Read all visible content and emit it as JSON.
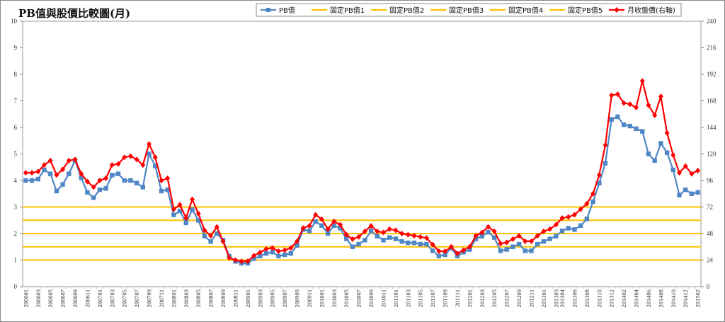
{
  "chart_data": {
    "type": "line",
    "title": "PB值與股價比較圖(月)",
    "y_left": {
      "min": 0,
      "max": 10,
      "ticks": [
        0,
        1,
        2,
        3,
        4,
        5,
        6,
        7,
        8,
        9,
        10
      ]
    },
    "y_right": {
      "min": 0,
      "max": 240,
      "ticks": [
        0,
        24,
        48,
        72,
        96,
        120,
        144,
        168,
        192,
        216,
        240
      ]
    },
    "legend_position": "top-right",
    "grid": false,
    "x": [
      "200601",
      "200602",
      "200603",
      "200604",
      "200605",
      "200606",
      "200607",
      "200608",
      "200609",
      "200610",
      "200611",
      "200612",
      "200701",
      "200702",
      "200703",
      "200704",
      "200705",
      "200706",
      "200707",
      "200708",
      "200709",
      "200710",
      "200711",
      "200712",
      "200801",
      "200802",
      "200803",
      "200804",
      "200805",
      "200806",
      "200807",
      "200808",
      "200809",
      "200810",
      "200811",
      "200812",
      "200901",
      "200902",
      "200903",
      "200904",
      "200905",
      "200906",
      "200907",
      "200908",
      "200909",
      "200910",
      "200911",
      "200912",
      "201001",
      "201002",
      "201003",
      "201004",
      "201005",
      "201006",
      "201007",
      "201008",
      "201009",
      "201010",
      "201011",
      "201012",
      "201101",
      "201102",
      "201103",
      "201104",
      "201105",
      "201106",
      "201107",
      "201108",
      "201109",
      "201110",
      "201111",
      "201112",
      "201201",
      "201202",
      "201203",
      "201204",
      "201205",
      "201206",
      "201207",
      "201208",
      "201209",
      "201210",
      "201211",
      "201212",
      "201301",
      "201302",
      "201303",
      "201304",
      "201305",
      "201306",
      "201307",
      "201308",
      "201309",
      "201310",
      "201311",
      "201312",
      "201401",
      "201402",
      "201403",
      "201404",
      "201405",
      "201406",
      "201407",
      "201408",
      "201409",
      "201410",
      "201411",
      "201412",
      "201501",
      "201502"
    ],
    "x_tick_labels": [
      "200601",
      "200603",
      "200605",
      "200607",
      "200609",
      "200611",
      "200701",
      "200703",
      "200705",
      "200707",
      "200709",
      "200711",
      "200801",
      "200803",
      "200805",
      "200807",
      "200809",
      "200811",
      "200901",
      "200903",
      "200905",
      "200907",
      "200909",
      "200911",
      "201001",
      "201003",
      "201005",
      "201007",
      "201009",
      "201011",
      "201101",
      "201103",
      "201105",
      "201107",
      "201109",
      "201111",
      "201201",
      "201203",
      "201205",
      "201207",
      "201209",
      "201211",
      "201301",
      "201303",
      "201304",
      "201306",
      "201308",
      "201310",
      "201312",
      "201402",
      "201404",
      "201406",
      "201408",
      "201410",
      "201412",
      "201502"
    ],
    "series": [
      {
        "name": "PB值",
        "axis": "left",
        "color": "#4f86c6",
        "marker": "square",
        "values": [
          4.0,
          4.0,
          4.05,
          4.4,
          4.25,
          3.6,
          3.85,
          4.25,
          4.75,
          4.1,
          3.55,
          3.35,
          3.65,
          3.7,
          4.2,
          4.25,
          4.0,
          4.0,
          3.9,
          3.75,
          5.0,
          4.55,
          3.6,
          3.65,
          2.7,
          2.85,
          2.4,
          2.9,
          2.5,
          1.9,
          1.7,
          2.0,
          1.75,
          1.15,
          0.95,
          0.88,
          0.88,
          1.05,
          1.15,
          1.25,
          1.3,
          1.15,
          1.2,
          1.25,
          1.55,
          2.15,
          2.1,
          2.45,
          2.3,
          2.0,
          2.3,
          2.2,
          1.8,
          1.5,
          1.6,
          1.75,
          2.1,
          1.9,
          1.75,
          1.85,
          1.8,
          1.7,
          1.65,
          1.65,
          1.6,
          1.6,
          1.35,
          1.15,
          1.2,
          1.45,
          1.15,
          1.3,
          1.4,
          1.8,
          1.9,
          2.05,
          1.85,
          1.35,
          1.4,
          1.5,
          1.6,
          1.35,
          1.35,
          1.6,
          1.7,
          1.8,
          1.9,
          2.1,
          2.2,
          2.15,
          2.3,
          2.55,
          3.2,
          3.9,
          4.65,
          6.3,
          6.4,
          6.1,
          6.05,
          5.95,
          5.85,
          5.0,
          4.75,
          5.4,
          5.05,
          4.4,
          3.45,
          3.65,
          3.5,
          3.55
        ]
      },
      {
        "name": "固定PB值1",
        "axis": "left",
        "color": "#ffc000",
        "constant": 1.0
      },
      {
        "name": "固定PB值2",
        "axis": "left",
        "color": "#ffc000",
        "constant": 1.5
      },
      {
        "name": "固定PB值3",
        "axis": "left",
        "color": "#ffc000",
        "constant": 2.0
      },
      {
        "name": "固定PB值4",
        "axis": "left",
        "color": "#ffc000",
        "constant": 2.5
      },
      {
        "name": "固定PB值5",
        "axis": "left",
        "color": "#ffc000",
        "constant": 3.0
      },
      {
        "name": "月收盤價(右軸)",
        "axis": "right",
        "color": "#ff0000",
        "marker": "diamond",
        "values": [
          103,
          103,
          104,
          110,
          114,
          101,
          106,
          114,
          115,
          102,
          95,
          90,
          96,
          98,
          110,
          111,
          117,
          118,
          115,
          110,
          129,
          117,
          96,
          98,
          70,
          74,
          62,
          79,
          66,
          51,
          46,
          54,
          41,
          26,
          24,
          23,
          23,
          28,
          31,
          34,
          35,
          32,
          33,
          35,
          41,
          53,
          55,
          65,
          61,
          52,
          59,
          56,
          47,
          43,
          45,
          50,
          55,
          50,
          49,
          52,
          51,
          48,
          47,
          46,
          45,
          44,
          38,
          32,
          32,
          36,
          30,
          33,
          36,
          46,
          49,
          54,
          50,
          39,
          40,
          43,
          46,
          41,
          41,
          46,
          50,
          52,
          56,
          62,
          63,
          65,
          70,
          75,
          84,
          101,
          128,
          173,
          174,
          166,
          165,
          162,
          186,
          164,
          155,
          172,
          139,
          119,
          103,
          109,
          102,
          105
        ]
      }
    ]
  }
}
